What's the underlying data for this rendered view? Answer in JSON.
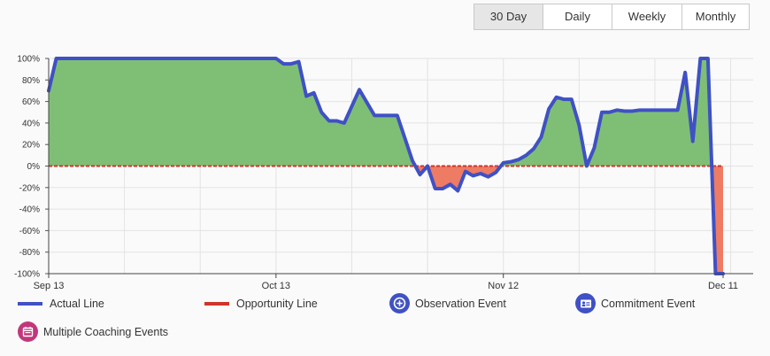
{
  "toolbar": {
    "buttons": [
      {
        "label": "30 Day",
        "active": true
      },
      {
        "label": "Daily",
        "active": false
      },
      {
        "label": "Weekly",
        "active": false
      },
      {
        "label": "Monthly",
        "active": false
      }
    ]
  },
  "colors": {
    "actual_line": "#3f51c4",
    "opportunity_line": "#d0342c",
    "positive_fill": "#7fbf75",
    "negative_fill": "#ee7b63",
    "observation_event": "#3f51c4",
    "commitment_event": "#3f51c4",
    "multiple_coaching": "#c2377c"
  },
  "legend": {
    "actual_line": "Actual Line",
    "opportunity_line": "Opportunity Line",
    "observation_event": "Observation Event",
    "commitment_event": "Commitment Event",
    "multiple_coaching": "Multiple Coaching Events"
  },
  "icons": {
    "observation_event": "plus-circle-icon",
    "commitment_event": "id-card-icon",
    "multiple_coaching": "calendar-icon"
  },
  "chart_data": {
    "type": "area",
    "x_tick_labels": [
      "Sep 13",
      "Oct 13",
      "Nov 12",
      "Dec 11"
    ],
    "x_tick_days": [
      0,
      30,
      60,
      89
    ],
    "x_range": [
      0,
      93
    ],
    "ylim": [
      -100,
      100
    ],
    "y_ticks": [
      100,
      80,
      60,
      40,
      20,
      0,
      -20,
      -40,
      -60,
      -80,
      -100
    ],
    "y_tick_labels": [
      "100%",
      "80%",
      "60%",
      "40%",
      "20%",
      "0%",
      "-20%",
      "-40%",
      "-60%",
      "-80%",
      "-100%"
    ],
    "grid": true,
    "series": [
      {
        "name": "Actual Line",
        "points": [
          [
            0,
            70
          ],
          [
            1,
            100
          ],
          [
            30,
            100
          ],
          [
            31,
            95
          ],
          [
            32,
            95
          ],
          [
            33,
            97
          ],
          [
            34,
            65
          ],
          [
            35,
            68
          ],
          [
            36,
            50
          ],
          [
            37,
            42
          ],
          [
            38,
            42
          ],
          [
            39,
            40
          ],
          [
            41,
            71
          ],
          [
            43,
            47
          ],
          [
            46,
            47
          ],
          [
            48,
            5
          ],
          [
            49,
            -8
          ],
          [
            50,
            0
          ],
          [
            51,
            -21
          ],
          [
            52,
            -21
          ],
          [
            53,
            -17
          ],
          [
            54,
            -23
          ],
          [
            55,
            -5
          ],
          [
            56,
            -9
          ],
          [
            57,
            -7
          ],
          [
            58,
            -10
          ],
          [
            59,
            -6
          ],
          [
            60,
            3
          ],
          [
            61,
            4
          ],
          [
            62,
            6
          ],
          [
            63,
            10
          ],
          [
            64,
            16
          ],
          [
            65,
            27
          ],
          [
            66,
            53
          ],
          [
            67,
            64
          ],
          [
            68,
            62
          ],
          [
            69,
            62
          ],
          [
            70,
            38
          ],
          [
            71,
            0
          ],
          [
            72,
            17
          ],
          [
            73,
            50
          ],
          [
            74,
            50
          ],
          [
            75,
            52
          ],
          [
            76,
            51
          ],
          [
            77,
            51
          ],
          [
            78,
            52
          ],
          [
            83,
            52
          ],
          [
            84,
            87
          ],
          [
            85,
            23
          ],
          [
            86,
            100
          ],
          [
            87,
            100
          ],
          [
            88,
            -100
          ],
          [
            89,
            -100
          ]
        ]
      },
      {
        "name": "Opportunity Line",
        "points": [
          [
            0,
            0
          ],
          [
            89,
            0
          ]
        ]
      }
    ]
  }
}
